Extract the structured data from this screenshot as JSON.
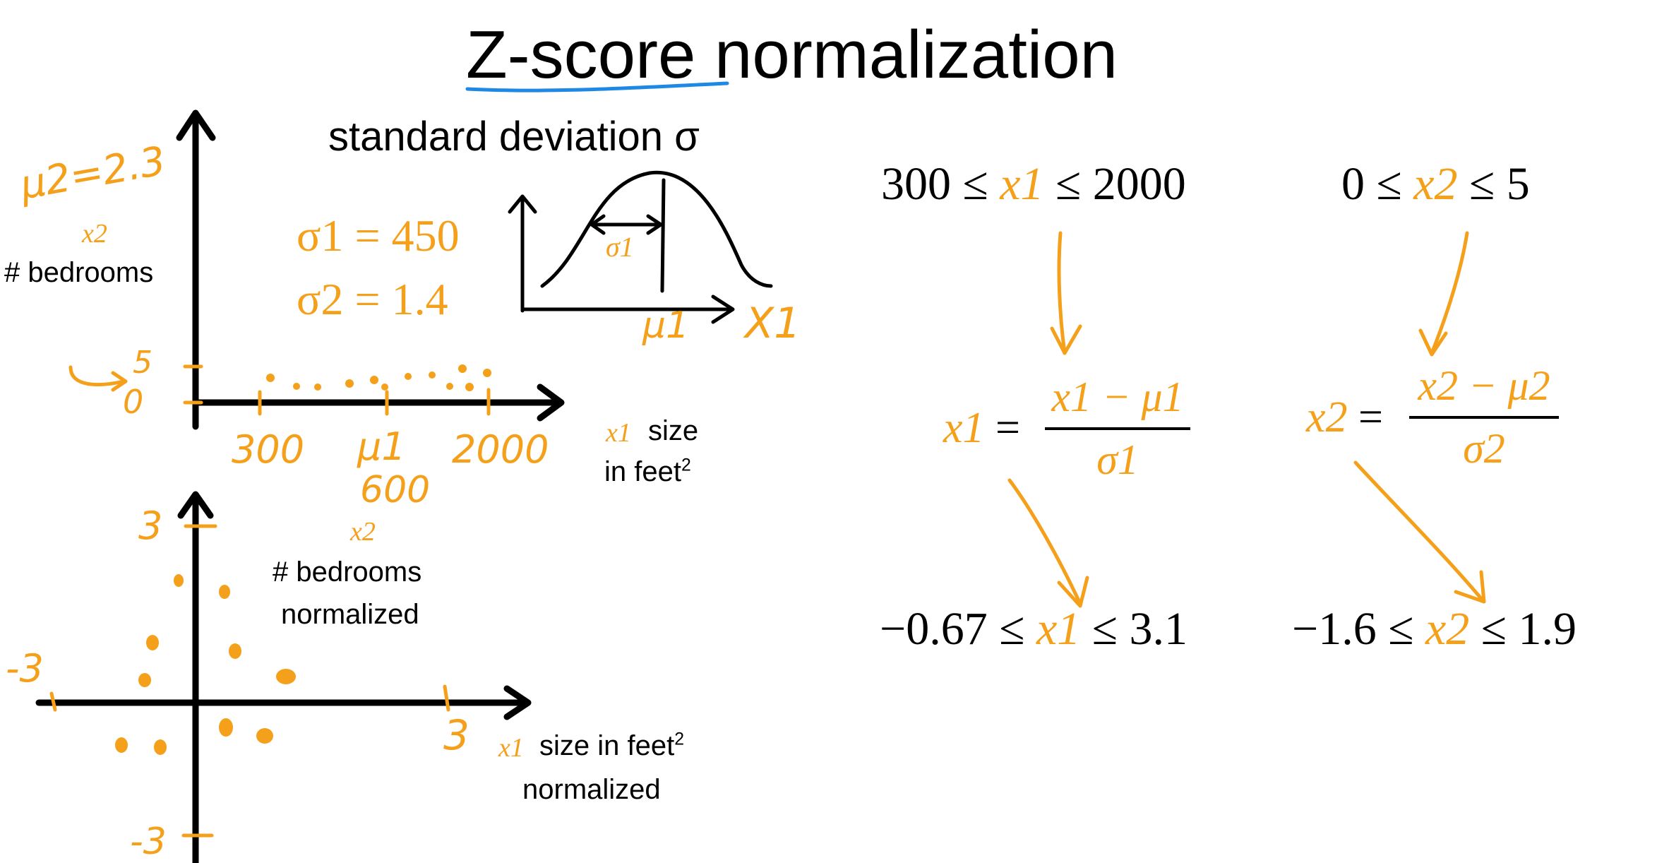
{
  "title": {
    "underlined": "Z-score",
    "rest": "normalization"
  },
  "colors": {
    "ink": "#000000",
    "accent": "#f5a01a",
    "underline": "#1e88e5"
  },
  "top_plot": {
    "y_axis_symbol": "x2",
    "y_axis_label": "# bedrooms",
    "x_axis_symbol": "x1",
    "x_axis_label_line1": "size",
    "x_axis_label_line2": "in feet",
    "mu2_annotation": "μ2=2.3",
    "y_ticks": [
      "5",
      "0"
    ],
    "x_ticks": [
      "300",
      "μ1",
      "2000"
    ],
    "mu1_value": "600",
    "sigma1": "σ1 = 450",
    "sigma2": "σ2 = 1.4"
  },
  "std_dev_sketch": {
    "label": "standard deviation σ",
    "sigma_label": "σ1",
    "mu_label": "μ1",
    "axis_label": "X1"
  },
  "bottom_plot": {
    "y_axis_symbol": "x2",
    "y_axis_label_line1": "# bedrooms",
    "y_axis_label_line2": "normalized",
    "x_axis_symbol": "x1",
    "x_axis_label_line1": "size in feet",
    "x_axis_label_line2": "normalized",
    "y_tick_top": "3",
    "y_tick_bottom": "-3",
    "x_tick_left": "-3",
    "x_tick_right": "3"
  },
  "ranges": {
    "x1_low": "300 ≤",
    "x1_var": "x1",
    "x1_high": "≤ 2000",
    "x2_low": "0 ≤",
    "x2_var": "x2",
    "x2_high": "≤ 5"
  },
  "formulas": {
    "x1_lhs": "x1",
    "x1_num": "x1 − μ1",
    "x1_den": "σ1",
    "x2_lhs": "x2",
    "x2_num": "x2 − μ2",
    "x2_den": "σ2"
  },
  "normalized_ranges": {
    "x1_low": "−0.67 ≤",
    "x1_var": "x1",
    "x1_high": "≤ 3.1",
    "x2_low": "−1.6 ≤",
    "x2_var": "x2",
    "x2_high": "≤ 1.9"
  }
}
